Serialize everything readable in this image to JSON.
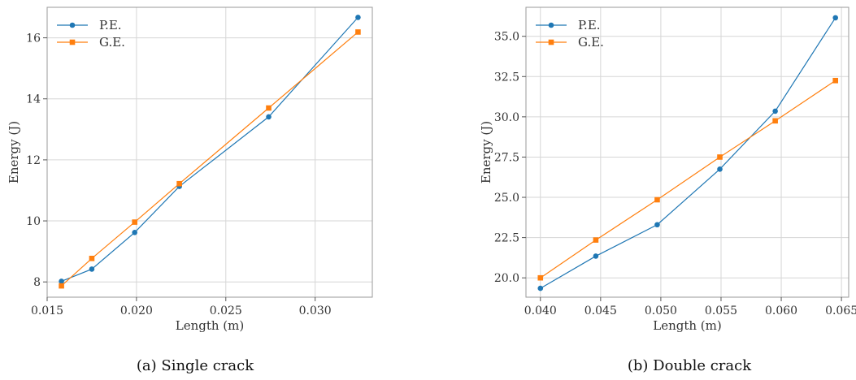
{
  "chart_data": [
    {
      "type": "line",
      "xlabel": "Length (m)",
      "ylabel": "Energy (J)",
      "xlim": [
        0.015,
        0.0332
      ],
      "ylim": [
        7.5,
        17.0
      ],
      "xticks": [
        0.015,
        0.02,
        0.025,
        0.03
      ],
      "xtick_labels": [
        "0.015",
        "0.020",
        "0.025",
        "0.030"
      ],
      "yticks": [
        8,
        10,
        12,
        14,
        16
      ],
      "ytick_labels": [
        "8",
        "10",
        "12",
        "14",
        "16"
      ],
      "grid": true,
      "legend_position": "top-left",
      "series": [
        {
          "name": "P.E.",
          "color": "#1f77b4",
          "marker": "circle",
          "x": [
            0.0158,
            0.0175,
            0.0199,
            0.0224,
            0.0274,
            0.0324
          ],
          "y": [
            8.02,
            8.42,
            9.62,
            11.13,
            13.41,
            16.67
          ]
        },
        {
          "name": "G.E.",
          "color": "#ff7f0e",
          "marker": "square",
          "x": [
            0.0158,
            0.0175,
            0.0199,
            0.0224,
            0.0274,
            0.0324
          ],
          "y": [
            7.87,
            8.77,
            9.96,
            11.22,
            13.7,
            16.19
          ]
        }
      ]
    },
    {
      "type": "line",
      "xlabel": "Length (m)",
      "ylabel": "Energy (J)",
      "xlim": [
        0.0388,
        0.0656
      ],
      "ylim": [
        18.8,
        36.8
      ],
      "xticks": [
        0.04,
        0.045,
        0.05,
        0.055,
        0.06,
        0.065
      ],
      "xtick_labels": [
        "0.040",
        "0.045",
        "0.050",
        "0.055",
        "0.060",
        "0.065"
      ],
      "yticks": [
        20.0,
        22.5,
        25.0,
        27.5,
        30.0,
        32.5,
        35.0
      ],
      "ytick_labels": [
        "20.0",
        "22.5",
        "25.0",
        "27.5",
        "30.0",
        "32.5",
        "35.0"
      ],
      "grid": true,
      "legend_position": "top-left",
      "series": [
        {
          "name": "P.E.",
          "color": "#1f77b4",
          "marker": "circle",
          "x": [
            0.04,
            0.0446,
            0.0497,
            0.0549,
            0.0595,
            0.0645
          ],
          "y": [
            19.35,
            21.35,
            23.3,
            26.75,
            30.35,
            36.15
          ]
        },
        {
          "name": "G.E.",
          "color": "#ff7f0e",
          "marker": "square",
          "x": [
            0.04,
            0.0446,
            0.0497,
            0.0549,
            0.0595,
            0.0645
          ],
          "y": [
            20.0,
            22.35,
            24.85,
            27.5,
            29.75,
            32.25
          ]
        }
      ]
    }
  ],
  "captions": {
    "panel_a": "(a) Single crack",
    "panel_b": "(b) Double crack"
  }
}
